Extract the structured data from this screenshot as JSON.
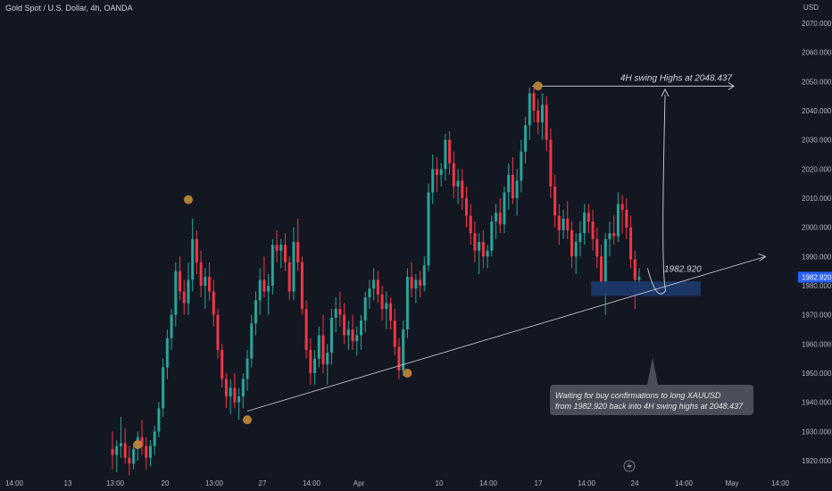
{
  "chart_data": {
    "type": "candlestick",
    "title": "Gold Spot / U.S. Dollar, 4h, OANDA",
    "currency": "USD",
    "ylim": [
      1915,
      2075
    ],
    "yticks": [
      1920,
      1930,
      1940,
      1950,
      1960,
      1970,
      1980,
      1990,
      2000,
      2010,
      2020,
      2030,
      2040,
      2050,
      2060,
      2070
    ],
    "ytick_labels": [
      "1920.000",
      "1930.000",
      "1940.000",
      "1950.000",
      "1960.000",
      "1970.000",
      "1980.000",
      "1990.000",
      "2000.000",
      "2010.000",
      "2020.000",
      "2030.000",
      "2040.000",
      "2050.000",
      "2060.000",
      "2070.000"
    ],
    "xtick_labels": [
      "14:00",
      "13",
      "13:00",
      "20",
      "13:00",
      "27",
      "14:00",
      "Apr",
      "10",
      "14:00",
      "17",
      "14:00",
      "24",
      "14:00",
      "May",
      "14:00"
    ],
    "current_price_label": "1982.920",
    "colors": {
      "up": "#26a69a",
      "down": "#f23645",
      "background": "#131722",
      "marker": "#b8863b",
      "zone": "#1e3a6e",
      "price_tag": "#2962ff"
    },
    "candles": [
      [
        1924,
        1930,
        1917,
        1922
      ],
      [
        1922,
        1927,
        1916,
        1925
      ],
      [
        1925,
        1935,
        1921,
        1926
      ],
      [
        1926,
        1931,
        1919,
        1921
      ],
      [
        1921,
        1925,
        1915,
        1919
      ],
      [
        1919,
        1926,
        1917,
        1924
      ],
      [
        1924,
        1930,
        1920,
        1928
      ],
      [
        1928,
        1934,
        1922,
        1925
      ],
      [
        1925,
        1928,
        1917,
        1921
      ],
      [
        1921,
        1927,
        1918,
        1925
      ],
      [
        1925,
        1932,
        1922,
        1930
      ],
      [
        1930,
        1940,
        1928,
        1938
      ],
      [
        1938,
        1955,
        1935,
        1952
      ],
      [
        1952,
        1965,
        1948,
        1962
      ],
      [
        1962,
        1972,
        1958,
        1970
      ],
      [
        1970,
        1988,
        1966,
        1985
      ],
      [
        1985,
        1990,
        1975,
        1978
      ],
      [
        1978,
        1982,
        1970,
        1974
      ],
      [
        1974,
        1988,
        1970,
        1982
      ],
      [
        1982,
        2003,
        1978,
        1996
      ],
      [
        1996,
        1999,
        1984,
        1988
      ],
      [
        1988,
        1992,
        1976,
        1980
      ],
      [
        1980,
        1986,
        1972,
        1983
      ],
      [
        1983,
        1988,
        1975,
        1978
      ],
      [
        1978,
        1982,
        1966,
        1970
      ],
      [
        1970,
        1972,
        1955,
        1958
      ],
      [
        1958,
        1960,
        1945,
        1948
      ],
      [
        1948,
        1950,
        1938,
        1942
      ],
      [
        1942,
        1948,
        1936,
        1945
      ],
      [
        1945,
        1950,
        1938,
        1940
      ],
      [
        1940,
        1945,
        1934,
        1942
      ],
      [
        1942,
        1950,
        1938,
        1948
      ],
      [
        1948,
        1958,
        1944,
        1955
      ],
      [
        1955,
        1970,
        1952,
        1967
      ],
      [
        1967,
        1978,
        1963,
        1975
      ],
      [
        1975,
        1986,
        1970,
        1982
      ],
      [
        1982,
        1990,
        1976,
        1978
      ],
      [
        1978,
        1984,
        1970,
        1980
      ],
      [
        1980,
        1996,
        1977,
        1994
      ],
      [
        1994,
        1999,
        1988,
        1992
      ],
      [
        1992,
        1996,
        1986,
        1994
      ],
      [
        1994,
        1998,
        1985,
        1988
      ],
      [
        1988,
        1990,
        1975,
        1978
      ],
      [
        1978,
        2000,
        1975,
        1995
      ],
      [
        1995,
        2003,
        1985,
        1988
      ],
      [
        1988,
        1990,
        1970,
        1972
      ],
      [
        1972,
        1975,
        1955,
        1958
      ],
      [
        1958,
        1962,
        1946,
        1950
      ],
      [
        1950,
        1958,
        1946,
        1955
      ],
      [
        1955,
        1966,
        1952,
        1963
      ],
      [
        1963,
        1970,
        1950,
        1953
      ],
      [
        1953,
        1960,
        1946,
        1957
      ],
      [
        1957,
        1972,
        1953,
        1969
      ],
      [
        1969,
        1976,
        1964,
        1972
      ],
      [
        1972,
        1978,
        1966,
        1970
      ],
      [
        1970,
        1974,
        1960,
        1963
      ],
      [
        1963,
        1968,
        1958,
        1965
      ],
      [
        1965,
        1970,
        1958,
        1961
      ],
      [
        1961,
        1966,
        1956,
        1963
      ],
      [
        1963,
        1970,
        1958,
        1968
      ],
      [
        1968,
        1978,
        1964,
        1976
      ],
      [
        1976,
        1982,
        1972,
        1979
      ],
      [
        1979,
        1986,
        1975,
        1982
      ],
      [
        1982,
        1985,
        1974,
        1977
      ],
      [
        1977,
        1980,
        1968,
        1972
      ],
      [
        1972,
        1978,
        1965,
        1974
      ],
      [
        1974,
        1976,
        1965,
        1968
      ],
      [
        1968,
        1972,
        1956,
        1959
      ],
      [
        1959,
        1962,
        1948,
        1951
      ],
      [
        1951,
        1968,
        1949,
        1965
      ],
      [
        1965,
        1986,
        1962,
        1983
      ],
      [
        1983,
        1988,
        1976,
        1979
      ],
      [
        1979,
        1984,
        1974,
        1982
      ],
      [
        1982,
        1985,
        1976,
        1980
      ],
      [
        1980,
        1990,
        1978,
        1987
      ],
      [
        1987,
        2015,
        1985,
        2012
      ],
      [
        2012,
        2025,
        2008,
        2020
      ],
      [
        2020,
        2024,
        2012,
        2018
      ],
      [
        2018,
        2022,
        2014,
        2020
      ],
      [
        2020,
        2032,
        2016,
        2030
      ],
      [
        2030,
        2033,
        2018,
        2022
      ],
      [
        2022,
        2026,
        2010,
        2014
      ],
      [
        2014,
        2020,
        2008,
        2016
      ],
      [
        2016,
        2020,
        2006,
        2010
      ],
      [
        2010,
        2014,
        2000,
        2004
      ],
      [
        2004,
        2008,
        1994,
        1998
      ],
      [
        1998,
        2002,
        1988,
        1992
      ],
      [
        1992,
        1998,
        1984,
        1995
      ],
      [
        1995,
        1999,
        1986,
        1990
      ],
      [
        1990,
        1994,
        1986,
        1992
      ],
      [
        1992,
        2004,
        1990,
        2002
      ],
      [
        2002,
        2008,
        1996,
        2005
      ],
      [
        2005,
        2010,
        1998,
        2001
      ],
      [
        2001,
        2014,
        1998,
        2012
      ],
      [
        2012,
        2022,
        2006,
        2018
      ],
      [
        2018,
        2024,
        2008,
        2010
      ],
      [
        2010,
        2020,
        2004,
        2016
      ],
      [
        2016,
        2030,
        2012,
        2026
      ],
      [
        2026,
        2038,
        2022,
        2035
      ],
      [
        2035,
        2048,
        2030,
        2046
      ],
      [
        2046,
        2049,
        2036,
        2040
      ],
      [
        2040,
        2044,
        2032,
        2036
      ],
      [
        2036,
        2046,
        2030,
        2042
      ],
      [
        2042,
        2045,
        2026,
        2030
      ],
      [
        2030,
        2034,
        2010,
        2014
      ],
      [
        2014,
        2018,
        2000,
        2004
      ],
      [
        2004,
        2008,
        1994,
        1999
      ],
      [
        1999,
        2006,
        1996,
        2003
      ],
      [
        2003,
        2009,
        1996,
        1999
      ],
      [
        1999,
        2002,
        1986,
        1990
      ],
      [
        1990,
        1998,
        1984,
        1995
      ],
      [
        1995,
        2002,
        1990,
        1998
      ],
      [
        1998,
        2008,
        1994,
        2005
      ],
      [
        2005,
        2008,
        1998,
        2002
      ],
      [
        2002,
        2006,
        1992,
        1996
      ],
      [
        1996,
        2000,
        1986,
        1990
      ],
      [
        1990,
        1994,
        1978,
        1981
      ],
      [
        1981,
        1998,
        1970,
        1996
      ],
      [
        1996,
        2002,
        1990,
        1998
      ],
      [
        1998,
        2004,
        1994,
        1997
      ],
      [
        1997,
        2012,
        1995,
        2008
      ],
      [
        2008,
        2011,
        1998,
        2006
      ],
      [
        2006,
        2010,
        1996,
        2000
      ],
      [
        2000,
        2004,
        1986,
        1989
      ],
      [
        1989,
        1992,
        1972,
        1982
      ],
      [
        1982,
        1986,
        1978,
        1983
      ]
    ],
    "markers": [
      {
        "type": "swing-low",
        "index": 6,
        "price": 1925.5
      },
      {
        "type": "swing-high",
        "index": 18,
        "price": 2009.5
      },
      {
        "type": "swing-low",
        "index": 32,
        "price": 1934
      },
      {
        "type": "swing-low",
        "index": 70,
        "price": 1950
      },
      {
        "type": "swing-high",
        "index": 101,
        "price": 2048.5
      }
    ],
    "annotations": {
      "swing_high_label": "4H swing Highs at 2048.437",
      "swing_high_price": 2048.437,
      "entry_label": "1982.920",
      "entry_price": 1982.92,
      "demand_zone": {
        "from_index": 114,
        "to_index": 140,
        "low": 1976.5,
        "high": 1981.5
      },
      "trendline": {
        "from_index": 32,
        "from_price": 1937,
        "to_index": 155,
        "to_price": 1990
      },
      "note_line1": "Waiting for buy confirmations to long XAUUSD",
      "note_line2": "from 1982.920 back into 4H swing highs at 2048.437"
    }
  }
}
